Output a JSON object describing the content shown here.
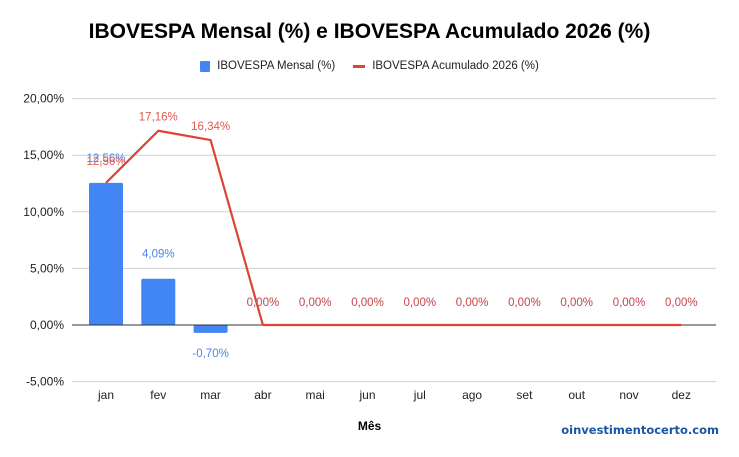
{
  "title": "IBOVESPA Mensal (%) e IBOVESPA Acumulado 2026 (%)",
  "legend": [
    {
      "label": "IBOVESPA Mensal (%)",
      "type": "bar",
      "color": "#4285f4"
    },
    {
      "label": "IBOVESPA Acumulado 2026 (%)",
      "type": "line",
      "color": "#db4437"
    }
  ],
  "x_axis_title": "Mês",
  "watermark": "oinvestimentocerto.com",
  "chart_data": {
    "type": "bar",
    "title": "IBOVESPA Mensal (%) e IBOVESPA Acumulado 2026 (%)",
    "xlabel": "Mês",
    "ylabel": "",
    "ylim": [
      -5,
      20
    ],
    "yticks": [
      "-5,00%",
      "0,00%",
      "5,00%",
      "10,00%",
      "15,00%",
      "20,00%"
    ],
    "grid": true,
    "legend_position": "top",
    "categories": [
      "jan",
      "fev",
      "mar",
      "abr",
      "mai",
      "jun",
      "jul",
      "ago",
      "set",
      "out",
      "nov",
      "dez"
    ],
    "series": [
      {
        "name": "IBOVESPA Mensal (%)",
        "type": "bar",
        "color": "#4285f4",
        "values": [
          12.56,
          4.09,
          -0.7,
          0,
          0,
          0,
          0,
          0,
          0,
          0,
          0,
          0
        ],
        "labels": [
          "12,56%",
          "4,09%",
          "-0,70%",
          "0,00%",
          "0,00%",
          "0,00%",
          "0,00%",
          "0,00%",
          "0,00%",
          "0,00%",
          "0,00%",
          "0,00%"
        ]
      },
      {
        "name": "IBOVESPA Acumulado 2026 (%)",
        "type": "line",
        "color": "#db4437",
        "values": [
          12.56,
          17.16,
          16.34,
          0,
          0,
          0,
          0,
          0,
          0,
          0,
          0,
          0
        ],
        "labels": [
          "12,56%",
          "17,16%",
          "16,34%",
          "0,00%",
          "0,00%",
          "0,00%",
          "0,00%",
          "0,00%",
          "0,00%",
          "0,00%",
          "0,00%",
          "0,00%"
        ]
      }
    ]
  }
}
